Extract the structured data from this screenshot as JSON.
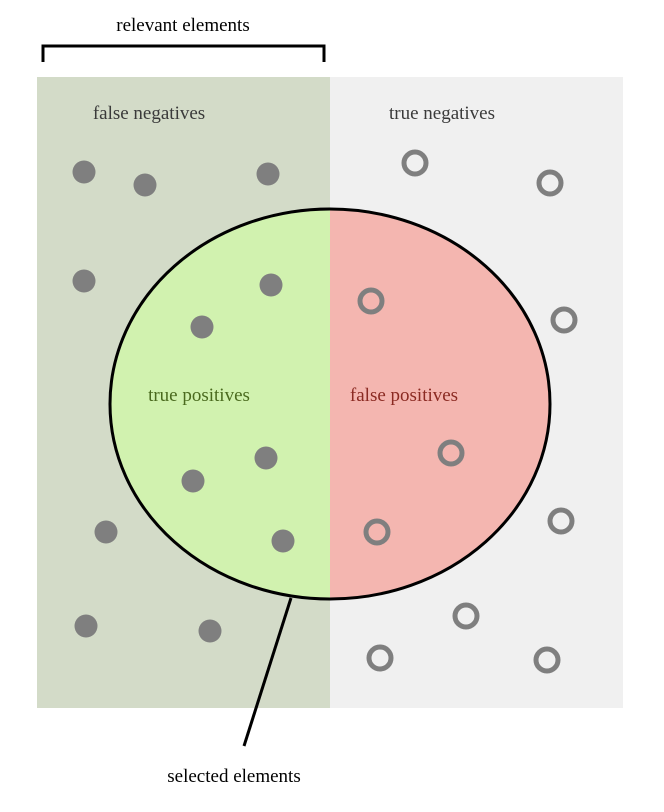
{
  "labels": {
    "relevant": "relevant elements",
    "false_negatives": "false negatives",
    "true_negatives": "true negatives",
    "true_positives": "true positives",
    "false_positives": "false positives",
    "selected": "selected elements"
  },
  "colors": {
    "relevant_region": "#d3dbc8",
    "nonrelevant_region": "#f0f0f0",
    "true_positive_fill": "#d1f2af",
    "false_positive_fill": "#f4b6b0",
    "dot": "#7f7f7f",
    "outline": "#000000",
    "text_default": "#3a3a3a",
    "text_true_positive": "#4a6a1e",
    "text_false_positive": "#8b2a22"
  },
  "counts": {
    "false_negatives": 8,
    "true_positives": 6,
    "false_positives": 4,
    "true_negatives": 8
  }
}
